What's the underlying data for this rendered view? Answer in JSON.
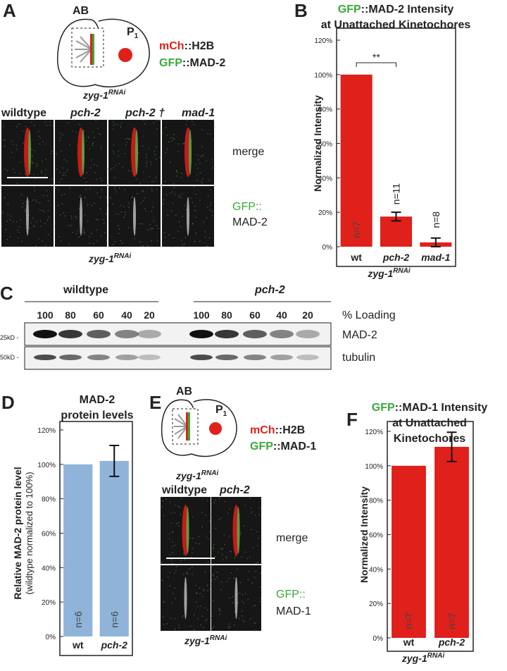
{
  "panel_labels": [
    "A",
    "B",
    "C",
    "D",
    "E",
    "F"
  ],
  "panel_a": {
    "cell_labels": [
      "AB",
      "P",
      "1"
    ],
    "marker_1": [
      "mCh",
      "::H2B"
    ],
    "marker_2": [
      "GFP",
      "::MAD-2"
    ],
    "rnai": [
      "zyg-1",
      "RNAi"
    ],
    "columns": [
      "wildtype",
      "pch-2",
      "pch-2 †",
      "mad-1"
    ],
    "rows": [
      "merge",
      "GFP::",
      "MAD-2"
    ],
    "footer": [
      "zyg-1",
      "RNAi"
    ]
  },
  "panel_c": {
    "groups": [
      "wildtype",
      "pch-2"
    ],
    "loadings": [
      "100",
      "80",
      "60",
      "40",
      "20",
      "100",
      "80",
      "60",
      "40",
      "20"
    ],
    "loading_label": "% Loading",
    "markers": [
      "25kD -",
      "50kD -"
    ],
    "rows": [
      "MAD-2",
      "tubulin"
    ]
  },
  "panel_e": {
    "cell_labels": [
      "AB",
      "P",
      "1"
    ],
    "marker_1": [
      "mCh",
      "::H2B"
    ],
    "marker_2": [
      "GFP",
      "::MAD-1"
    ],
    "rnai": [
      "zyg-1",
      "RNAi"
    ],
    "columns": [
      "wildtype",
      "pch-2"
    ],
    "rows": [
      "merge",
      "GFP::",
      "MAD-1"
    ],
    "footer": [
      "zyg-1",
      "RNAi"
    ]
  },
  "chart_data": [
    {
      "type": "bar",
      "title_prefix": "GFP",
      "title": "::MAD-2 Intensity",
      "subtitle_lines": [
        "at Unattached Kinetochores"
      ],
      "ylabel": "Normalized Intensity",
      "categories": [
        "wt",
        "pch-2",
        "mad-1"
      ],
      "values": [
        100,
        17.5,
        2.5
      ],
      "errors": [
        null,
        2.5,
        2.5
      ],
      "annotations": [
        "n=7",
        "n=11",
        "n=8"
      ],
      "significance": "**",
      "color": "#e0201b",
      "xgroup": "zyg-1",
      "xgroup_sup": "RNAi",
      "ylim": [
        0,
        120
      ],
      "yticks": [
        {
          "value": 0,
          "label": "0%"
        },
        {
          "value": 20,
          "label": "20%"
        },
        {
          "value": 40,
          "label": "40%"
        },
        {
          "value": 60,
          "label": "60%"
        },
        {
          "value": 80,
          "label": "80%"
        },
        {
          "value": 100,
          "label": "100%"
        },
        {
          "value": 120,
          "label": "120%"
        }
      ]
    },
    {
      "type": "bar",
      "title": "MAD-2",
      "subtitle_lines": [
        "protein levels"
      ],
      "ylabel": "Relative MAD-2 protein level",
      "ylabel_note": "(wildtype normalized to 100%)",
      "categories": [
        "wt",
        "pch-2"
      ],
      "values": [
        100,
        102
      ],
      "errors": [
        null,
        9
      ],
      "annotations": [
        "n=6",
        "n=6"
      ],
      "color": "#8fb3d9",
      "ylim": [
        0,
        120
      ],
      "yticks": [
        {
          "value": 0,
          "label": "0%"
        },
        {
          "value": 20,
          "label": "20%"
        },
        {
          "value": 40,
          "label": "40%"
        },
        {
          "value": 60,
          "label": "60%"
        },
        {
          "value": 80,
          "label": "80%"
        },
        {
          "value": 100,
          "label": "100%"
        },
        {
          "value": 120,
          "label": "120%"
        }
      ]
    },
    {
      "type": "bar",
      "title_prefix": "GFP",
      "title": "::MAD-1  Intensity",
      "subtitle_lines": [
        "at Unattached",
        "Kinetochores"
      ],
      "ylabel": "Normalized Intensity",
      "categories": [
        "wt",
        "pch-2"
      ],
      "values": [
        100,
        111
      ],
      "errors": [
        null,
        8.5
      ],
      "annotations": [
        "n=7",
        "n=7"
      ],
      "color": "#e0201b",
      "xgroup": "zyg-1",
      "xgroup_sup": "RNAi",
      "ylim": [
        0,
        120
      ],
      "yticks": [
        {
          "value": 0,
          "label": "0%"
        },
        {
          "value": 20,
          "label": "20%"
        },
        {
          "value": 40,
          "label": "40%"
        },
        {
          "value": 60,
          "label": "60%"
        },
        {
          "value": 80,
          "label": "80%"
        },
        {
          "value": 100,
          "label": "100%"
        },
        {
          "value": 120,
          "label": "120%"
        }
      ]
    }
  ]
}
